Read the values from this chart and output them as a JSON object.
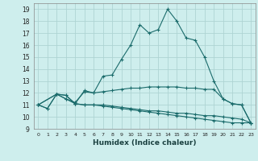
{
  "xlabel": "Humidex (Indice chaleur)",
  "background_color": "#ceeeed",
  "grid_color": "#aed4d3",
  "line_color": "#1a6b6b",
  "xlim": [
    -0.5,
    23.5
  ],
  "ylim": [
    9,
    19.5
  ],
  "yticks": [
    9,
    10,
    11,
    12,
    13,
    14,
    15,
    16,
    17,
    18,
    19
  ],
  "xticks": [
    0,
    1,
    2,
    3,
    4,
    5,
    6,
    7,
    8,
    9,
    10,
    11,
    12,
    13,
    14,
    15,
    16,
    17,
    18,
    19,
    20,
    21,
    22,
    23
  ],
  "line1_x": [
    0,
    1,
    2,
    3,
    4,
    5,
    6,
    7,
    8,
    9,
    10,
    11,
    12,
    13,
    14,
    15,
    16,
    17,
    18,
    19,
    20,
    21,
    22,
    23
  ],
  "line1_y": [
    11.0,
    10.7,
    11.9,
    11.8,
    11.1,
    12.2,
    12.0,
    13.4,
    13.5,
    14.8,
    16.0,
    17.7,
    17.0,
    17.3,
    19.0,
    18.0,
    16.6,
    16.4,
    15.0,
    13.0,
    11.5,
    11.1,
    11.0,
    9.5
  ],
  "line2_x": [
    0,
    1,
    2,
    3,
    4,
    5,
    6,
    7,
    8,
    9,
    10,
    11,
    12,
    13,
    14,
    15,
    16,
    17,
    18,
    19,
    20,
    21,
    22,
    23
  ],
  "line2_y": [
    11.0,
    10.7,
    11.9,
    11.5,
    11.2,
    12.1,
    12.0,
    12.1,
    12.2,
    12.3,
    12.4,
    12.4,
    12.5,
    12.5,
    12.5,
    12.5,
    12.4,
    12.4,
    12.3,
    12.3,
    11.5,
    11.1,
    11.0,
    9.5
  ],
  "line3_x": [
    0,
    2,
    3,
    4,
    5,
    6,
    7,
    8,
    9,
    10,
    11,
    12,
    13,
    14,
    15,
    16,
    17,
    18,
    19,
    20,
    21,
    22,
    23
  ],
  "line3_y": [
    11.0,
    11.9,
    11.5,
    11.1,
    11.0,
    11.0,
    11.0,
    10.9,
    10.8,
    10.7,
    10.6,
    10.5,
    10.5,
    10.4,
    10.3,
    10.3,
    10.2,
    10.1,
    10.1,
    10.0,
    9.9,
    9.8,
    9.5
  ],
  "line4_x": [
    0,
    2,
    3,
    4,
    5,
    6,
    7,
    8,
    9,
    10,
    11,
    12,
    13,
    14,
    15,
    16,
    17,
    18,
    19,
    20,
    21,
    22,
    23
  ],
  "line4_y": [
    11.0,
    11.9,
    11.8,
    11.1,
    11.0,
    11.0,
    10.9,
    10.8,
    10.7,
    10.6,
    10.5,
    10.4,
    10.3,
    10.2,
    10.1,
    10.0,
    9.9,
    9.8,
    9.7,
    9.6,
    9.5,
    9.5,
    9.5
  ]
}
